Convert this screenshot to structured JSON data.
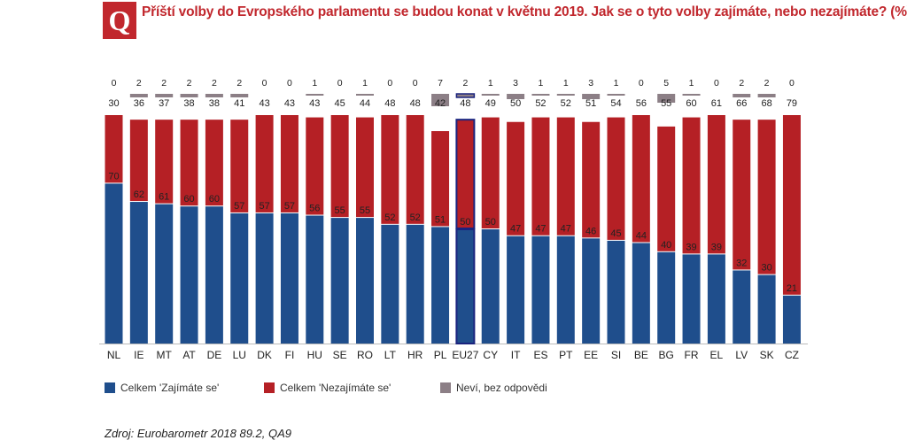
{
  "header": {
    "logo_letter": "Q",
    "title": "Příští volby do Evropského parlamentu se budou konat v květnu 2019. Jak se o tyto volby zajímáte, nebo nezajímáte? (%)"
  },
  "colors": {
    "interested": "#1f4e8c",
    "not_interested": "#b52025",
    "dont_know": "#8c7f86",
    "highlight_border": "#1a237e",
    "title": "#c1272d"
  },
  "chart_data": {
    "type": "bar",
    "stacked": true,
    "ylim": [
      0,
      100
    ],
    "categories": [
      "NL",
      "IE",
      "MT",
      "AT",
      "DE",
      "LU",
      "DK",
      "FI",
      "HU",
      "SE",
      "RO",
      "LT",
      "HR",
      "PL",
      "EU27",
      "CY",
      "IT",
      "ES",
      "PT",
      "EE",
      "SI",
      "BE",
      "BG",
      "FR",
      "EL",
      "LV",
      "SK",
      "CZ"
    ],
    "highlight": "EU27",
    "series": [
      {
        "name": "Celkem 'Zajímáte se'",
        "key": "interested",
        "values": [
          70,
          62,
          61,
          60,
          60,
          57,
          57,
          57,
          56,
          55,
          55,
          52,
          52,
          51,
          50,
          50,
          47,
          47,
          47,
          46,
          45,
          44,
          40,
          39,
          39,
          32,
          30,
          21
        ]
      },
      {
        "name": "Celkem 'Nezajímáte se'",
        "key": "not_interested",
        "values": [
          30,
          36,
          37,
          38,
          38,
          41,
          43,
          43,
          43,
          45,
          44,
          48,
          48,
          42,
          48,
          49,
          50,
          52,
          52,
          51,
          54,
          56,
          55,
          60,
          61,
          66,
          68,
          79
        ]
      },
      {
        "name": "Neví, bez odpovědi",
        "key": "dont_know",
        "values": [
          0,
          2,
          2,
          2,
          2,
          2,
          0,
          0,
          1,
          0,
          1,
          0,
          0,
          7,
          2,
          1,
          3,
          1,
          1,
          3,
          1,
          0,
          5,
          1,
          0,
          2,
          2,
          0
        ]
      }
    ]
  },
  "legend": [
    {
      "label": "Celkem 'Zajímáte se'",
      "color": "#1f4e8c"
    },
    {
      "label": "Celkem 'Nezajímáte se'",
      "color": "#b52025"
    },
    {
      "label": "Neví, bez odpovědi",
      "color": "#8c7f86"
    }
  ],
  "source": "Zdroj: Eurobarometr 2018 89.2, QA9"
}
